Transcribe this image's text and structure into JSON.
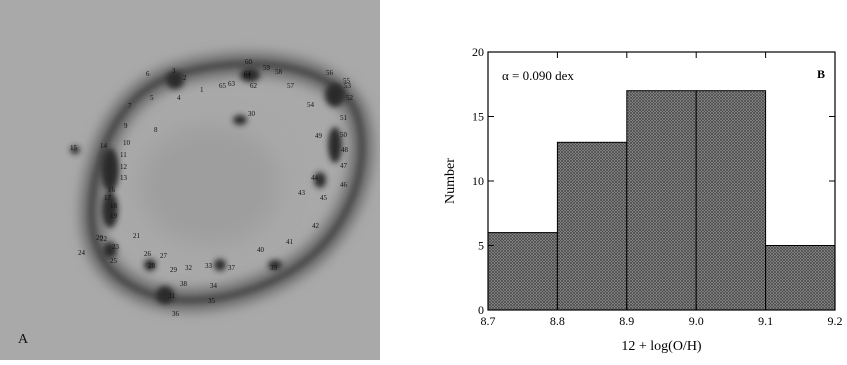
{
  "panel_a": {
    "letter": "A",
    "knot_labels": [
      "1",
      "2",
      "3",
      "4",
      "5",
      "6",
      "7",
      "8",
      "9",
      "10",
      "11",
      "12",
      "13",
      "14",
      "15",
      "16",
      "17",
      "18",
      "19",
      "20",
      "21",
      "22",
      "23",
      "24",
      "25",
      "26",
      "27",
      "28",
      "29",
      "30",
      "31",
      "32",
      "33",
      "34",
      "35",
      "36",
      "37",
      "38",
      "39",
      "40",
      "41",
      "42",
      "43",
      "44",
      "45",
      "46",
      "47",
      "48",
      "49",
      "50",
      "51",
      "52",
      "53",
      "54",
      "55",
      "56",
      "57",
      "58",
      "59",
      "60",
      "61",
      "62",
      "63",
      "64",
      "65"
    ]
  },
  "chart_data": {
    "type": "bar",
    "panel_letter": "B",
    "annotation": "α = 0.090 dex",
    "xlabel": "12 + log(O/H)",
    "ylabel": "Number",
    "xlim": [
      8.7,
      9.2
    ],
    "ylim": [
      0,
      20
    ],
    "x_ticks": [
      "8.7",
      "8.8",
      "8.9",
      "9.0",
      "9.1",
      "9.2"
    ],
    "y_ticks": [
      "0",
      "5",
      "10",
      "15",
      "20"
    ],
    "bins": [
      {
        "from": 8.7,
        "to": 8.8,
        "count": 6
      },
      {
        "from": 8.8,
        "to": 8.9,
        "count": 13
      },
      {
        "from": 8.9,
        "to": 9.0,
        "count": 17
      },
      {
        "from": 9.0,
        "to": 9.1,
        "count": 17
      },
      {
        "from": 9.1,
        "to": 9.2,
        "count": 5
      }
    ]
  }
}
